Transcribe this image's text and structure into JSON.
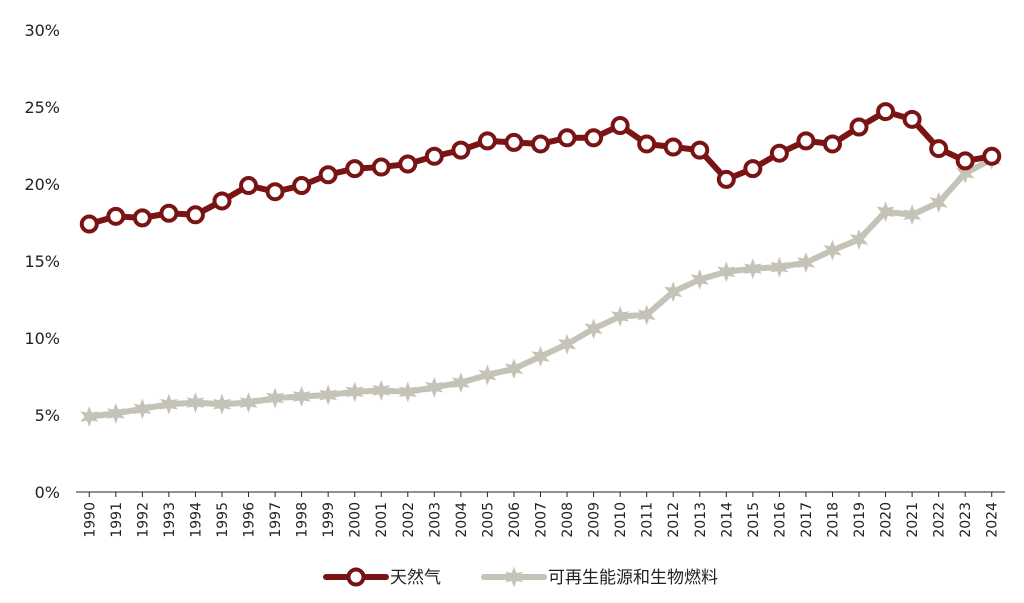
{
  "chart_data": {
    "type": "line",
    "title": "",
    "xlabel": "",
    "ylabel": "",
    "x": [
      "1990",
      "1991",
      "1992",
      "1993",
      "1994",
      "1995",
      "1996",
      "1997",
      "1998",
      "1999",
      "2000",
      "2001",
      "2002",
      "2003",
      "2004",
      "2005",
      "2006",
      "2007",
      "2008",
      "2009",
      "2010",
      "2011",
      "2012",
      "2013",
      "2014",
      "2015",
      "2016",
      "2017",
      "2018",
      "2019",
      "2020",
      "2021",
      "2022",
      "2023",
      "2024"
    ],
    "y_ticks": [
      "0%",
      "5%",
      "10%",
      "15%",
      "20%",
      "25%",
      "30%"
    ],
    "ylim": [
      0,
      30
    ],
    "y_unit": "%",
    "grid": false,
    "legend_position": "bottom",
    "series": [
      {
        "name": "天然气",
        "color": "#7a1414",
        "marker": "circle",
        "values": [
          17.4,
          17.9,
          17.8,
          18.1,
          18.0,
          18.9,
          19.9,
          19.5,
          19.9,
          20.6,
          21.0,
          21.1,
          21.3,
          21.8,
          22.2,
          22.8,
          22.7,
          22.6,
          23.0,
          23.0,
          23.8,
          22.6,
          22.4,
          22.2,
          20.3,
          21.0,
          22.0,
          22.8,
          22.6,
          23.7,
          24.7,
          24.2,
          22.3,
          21.5,
          21.8
        ]
      },
      {
        "name": "可再生能源和生物燃料",
        "color": "#c5c3b8",
        "marker": "star",
        "values": [
          4.9,
          5.1,
          5.4,
          5.7,
          5.8,
          5.7,
          5.8,
          6.1,
          6.2,
          6.3,
          6.5,
          6.6,
          6.5,
          6.8,
          7.1,
          7.6,
          8.0,
          8.8,
          9.6,
          10.6,
          11.4,
          11.5,
          13.0,
          13.8,
          14.3,
          14.5,
          14.6,
          14.9,
          15.7,
          16.4,
          18.2,
          18.0,
          18.8,
          20.7,
          21.6
        ]
      }
    ]
  }
}
